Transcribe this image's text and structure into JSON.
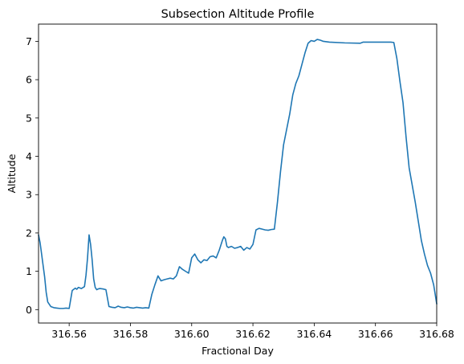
{
  "chart_data": {
    "type": "line",
    "title": "Subsection Altitude Profile",
    "xlabel": "Fractional Day",
    "ylabel": "Altitude",
    "xlim": [
      316.55,
      316.68
    ],
    "ylim": [
      -0.35,
      7.45
    ],
    "grid": false,
    "xticks": [
      316.56,
      316.58,
      316.6,
      316.62,
      316.64,
      316.66,
      316.68
    ],
    "xtick_labels": [
      "316.56",
      "316.58",
      "316.60",
      "316.62",
      "316.64",
      "316.66",
      "316.68"
    ],
    "yticks": [
      0,
      1,
      2,
      3,
      4,
      5,
      6,
      7
    ],
    "ytick_labels": [
      "0",
      "1",
      "2",
      "3",
      "4",
      "5",
      "6",
      "7"
    ],
    "series": [
      {
        "color": "#1f77b4",
        "x": [
          316.55,
          316.5505,
          316.551,
          316.5515,
          316.552,
          316.5525,
          316.553,
          316.554,
          316.555,
          316.556,
          316.557,
          316.558,
          316.559,
          316.56,
          316.561,
          316.562,
          316.5625,
          316.563,
          316.564,
          316.565,
          316.5655,
          316.566,
          316.5665,
          316.567,
          316.5675,
          316.568,
          316.5685,
          316.569,
          316.5695,
          316.57,
          316.571,
          316.572,
          316.573,
          316.574,
          316.575,
          316.576,
          316.577,
          316.578,
          316.579,
          316.58,
          316.581,
          316.582,
          316.583,
          316.584,
          316.585,
          316.586,
          316.587,
          316.588,
          316.589,
          316.59,
          316.591,
          316.592,
          316.593,
          316.594,
          316.595,
          316.596,
          316.597,
          316.598,
          316.599,
          316.6,
          316.601,
          316.602,
          316.603,
          316.604,
          316.605,
          316.606,
          316.607,
          316.608,
          316.609,
          316.61,
          316.6105,
          316.611,
          316.6115,
          316.612,
          316.613,
          316.614,
          316.615,
          316.616,
          316.617,
          316.618,
          316.619,
          316.62,
          316.621,
          316.622,
          316.623,
          316.624,
          316.625,
          316.626,
          316.627,
          316.628,
          316.629,
          316.63,
          316.631,
          316.632,
          316.633,
          316.634,
          316.635,
          316.636,
          316.637,
          316.638,
          316.639,
          316.64,
          316.641,
          316.642,
          316.643,
          316.644,
          316.645,
          316.65,
          316.655,
          316.656,
          316.66,
          316.665,
          316.666,
          316.667,
          316.668,
          316.669,
          316.67,
          316.671,
          316.672,
          316.673,
          316.674,
          316.675,
          316.676,
          316.677,
          316.678,
          316.679,
          316.68
        ],
        "y": [
          1.95,
          1.75,
          1.45,
          1.15,
          0.85,
          0.45,
          0.2,
          0.08,
          0.05,
          0.04,
          0.03,
          0.03,
          0.04,
          0.03,
          0.5,
          0.56,
          0.53,
          0.58,
          0.55,
          0.6,
          0.9,
          1.35,
          1.95,
          1.7,
          1.3,
          0.8,
          0.58,
          0.52,
          0.54,
          0.55,
          0.54,
          0.52,
          0.08,
          0.06,
          0.05,
          0.09,
          0.06,
          0.05,
          0.07,
          0.05,
          0.04,
          0.06,
          0.05,
          0.04,
          0.05,
          0.04,
          0.4,
          0.65,
          0.88,
          0.75,
          0.78,
          0.8,
          0.82,
          0.8,
          0.88,
          1.12,
          1.05,
          1.0,
          0.95,
          1.35,
          1.45,
          1.3,
          1.22,
          1.3,
          1.28,
          1.38,
          1.4,
          1.35,
          1.55,
          1.8,
          1.9,
          1.85,
          1.65,
          1.62,
          1.65,
          1.6,
          1.62,
          1.65,
          1.55,
          1.62,
          1.58,
          1.7,
          2.08,
          2.12,
          2.1,
          2.08,
          2.07,
          2.09,
          2.1,
          2.8,
          3.6,
          4.3,
          4.7,
          5.1,
          5.6,
          5.9,
          6.1,
          6.4,
          6.7,
          6.95,
          7.02,
          7.0,
          7.05,
          7.03,
          7.0,
          6.99,
          6.98,
          6.96,
          6.95,
          6.98,
          6.98,
          6.98,
          6.97,
          6.55,
          5.95,
          5.4,
          4.5,
          3.7,
          3.25,
          2.8,
          2.3,
          1.8,
          1.45,
          1.15,
          0.95,
          0.65,
          0.15
        ]
      }
    ]
  }
}
